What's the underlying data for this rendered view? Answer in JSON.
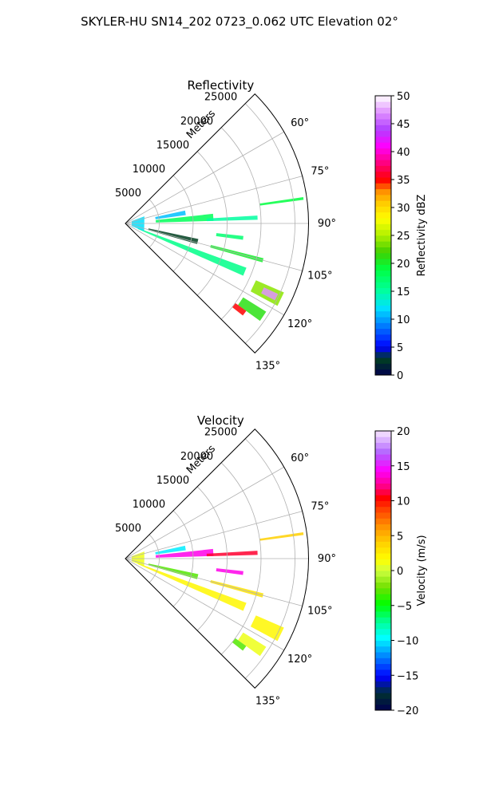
{
  "figure": {
    "title": "SKYLER-HU  SN14_202  0723_0.062 UTC Elevation 02°"
  },
  "chart_data": [
    {
      "type": "heatmap",
      "projection": "polar-sector",
      "title": "Reflectivity",
      "radial_axis_label": "Meters",
      "radial_ticks": [
        5000,
        10000,
        15000,
        20000,
        25000
      ],
      "radial_tick_labels": [
        "5000",
        "10000",
        "15000",
        "20000",
        "25000"
      ],
      "radial_range": [
        0,
        27000
      ],
      "azimuth_range_deg": [
        45,
        135
      ],
      "azimuth_ticks": [
        60,
        75,
        90,
        105,
        120,
        135
      ],
      "azimuth_tick_labels": [
        "60°",
        "75°",
        "90°",
        "105°",
        "120°",
        "135°"
      ],
      "grid": true,
      "colorbar": {
        "label": "Reflectivity dBZ",
        "range": [
          0,
          50
        ],
        "ticks": [
          0,
          5,
          10,
          15,
          20,
          25,
          30,
          35,
          40,
          45,
          50
        ],
        "tick_labels": [
          "0",
          "5",
          "10",
          "15",
          "20",
          "25",
          "30",
          "35",
          "40",
          "45",
          "50"
        ],
        "colormap": "pyart_NWSRef"
      },
      "echoes": [
        {
          "az": 86,
          "r0": 4500,
          "r1": 13000,
          "width_m": 700,
          "value": 18
        },
        {
          "az": 87.5,
          "r0": 12000,
          "r1": 19500,
          "width_m": 500,
          "value": 15
        },
        {
          "az": 80,
          "r0": 4500,
          "r1": 9000,
          "width_m": 500,
          "value": 11
        },
        {
          "az": 97,
          "r0": 13500,
          "r1": 17500,
          "width_m": 500,
          "value": 17
        },
        {
          "az": 104,
          "r0": 3500,
          "r1": 11000,
          "width_m": 500,
          "value": 3
        },
        {
          "az": 112,
          "r0": 2000,
          "r1": 19000,
          "width_m": 700,
          "value": 16
        },
        {
          "az": 105,
          "r0": 13000,
          "r1": 21000,
          "width_m": 500,
          "value": 20
        },
        {
          "az": 82,
          "r0": 20000,
          "r1": 26500,
          "width_m": 350,
          "value": 19
        },
        {
          "az": 91,
          "r0": 1000,
          "r1": 3000,
          "width_m": 1500,
          "value": 12
        },
        {
          "az": 116,
          "r0": 21000,
          "r1": 25500,
          "width_m": 2000,
          "value": 24
        },
        {
          "az": 116,
          "r0": 22500,
          "r1": 24800,
          "width_m": 1000,
          "value": 47
        },
        {
          "az": 124,
          "r0": 20500,
          "r1": 24500,
          "width_m": 1500,
          "value": 21
        },
        {
          "az": 127,
          "r0": 20000,
          "r1": 22000,
          "width_m": 800,
          "value": 35
        }
      ]
    },
    {
      "type": "heatmap",
      "projection": "polar-sector",
      "title": "Velocity",
      "radial_axis_label": "Meters",
      "radial_ticks": [
        5000,
        10000,
        15000,
        20000,
        25000
      ],
      "radial_tick_labels": [
        "5000",
        "10000",
        "15000",
        "20000",
        "25000"
      ],
      "radial_range": [
        0,
        27000
      ],
      "azimuth_range_deg": [
        45,
        135
      ],
      "azimuth_ticks": [
        60,
        75,
        90,
        105,
        120,
        135
      ],
      "azimuth_tick_labels": [
        "60°",
        "75°",
        "90°",
        "105°",
        "120°",
        "135°"
      ],
      "grid": true,
      "colorbar": {
        "label": "Velocity (m/s)",
        "range": [
          -20,
          20
        ],
        "ticks": [
          -20,
          -15,
          -10,
          -5,
          0,
          5,
          10,
          15,
          20
        ],
        "tick_labels": [
          "−20",
          "−15",
          "−10",
          "−5",
          "0",
          "5",
          "10",
          "15",
          "20"
        ],
        "colormap": "pyart_BuDRd18"
      },
      "echoes": [
        {
          "az": 86,
          "r0": 4500,
          "r1": 13000,
          "width_m": 700,
          "value": 14
        },
        {
          "az": 87.5,
          "r0": 12000,
          "r1": 19500,
          "width_m": 500,
          "value": 11
        },
        {
          "az": 80,
          "r0": 4500,
          "r1": 9000,
          "width_m": 500,
          "value": -10
        },
        {
          "az": 97,
          "r0": 13500,
          "r1": 17500,
          "width_m": 500,
          "value": 14
        },
        {
          "az": 104,
          "r0": 3500,
          "r1": 11000,
          "width_m": 500,
          "value": -3
        },
        {
          "az": 112,
          "r0": 2000,
          "r1": 19000,
          "width_m": 700,
          "value": 2
        },
        {
          "az": 105,
          "r0": 13000,
          "r1": 21000,
          "width_m": 500,
          "value": 3
        },
        {
          "az": 82,
          "r0": 20000,
          "r1": 26500,
          "width_m": 350,
          "value": 4
        },
        {
          "az": 91,
          "r0": 1000,
          "r1": 3000,
          "width_m": 1500,
          "value": 1
        },
        {
          "az": 116,
          "r0": 21000,
          "r1": 25500,
          "width_m": 2000,
          "value": 2
        },
        {
          "az": 124,
          "r0": 20500,
          "r1": 24500,
          "width_m": 1500,
          "value": 1
        },
        {
          "az": 127,
          "r0": 20000,
          "r1": 22000,
          "width_m": 800,
          "value": -3
        }
      ]
    }
  ]
}
